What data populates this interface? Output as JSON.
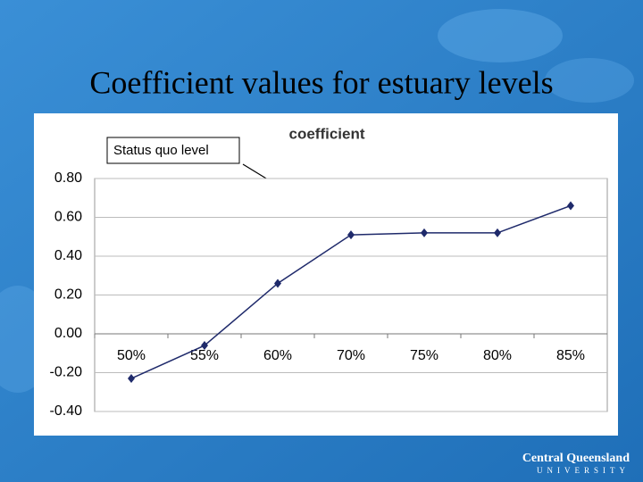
{
  "title": "Coefficient values for estuary levels",
  "chart_data": {
    "type": "line",
    "title": "coefficient",
    "categories": [
      "50%",
      "55%",
      "60%",
      "70%",
      "75%",
      "80%",
      "85%"
    ],
    "series": [
      {
        "name": "coefficient",
        "color": "#1f2a6b",
        "values": [
          -0.23,
          -0.06,
          0.26,
          0.51,
          0.52,
          0.52,
          0.66
        ]
      }
    ],
    "ylim": [
      -0.4,
      0.8
    ],
    "yticks": [
      {
        "value": -0.4,
        "label": "-0.40"
      },
      {
        "value": -0.2,
        "label": "-0.20"
      },
      {
        "value": 0,
        "label": "0.00"
      },
      {
        "value": 0.2,
        "label": "0.20"
      },
      {
        "value": 0.4,
        "label": "0.40"
      },
      {
        "value": 0.6,
        "label": "0.60"
      },
      {
        "value": 0.8,
        "label": "0.80"
      }
    ],
    "grid": true,
    "annotations": [
      {
        "text": "Status quo level"
      }
    ]
  },
  "logo": {
    "name": "Central Queensland",
    "sub": "UNIVERSITY"
  }
}
